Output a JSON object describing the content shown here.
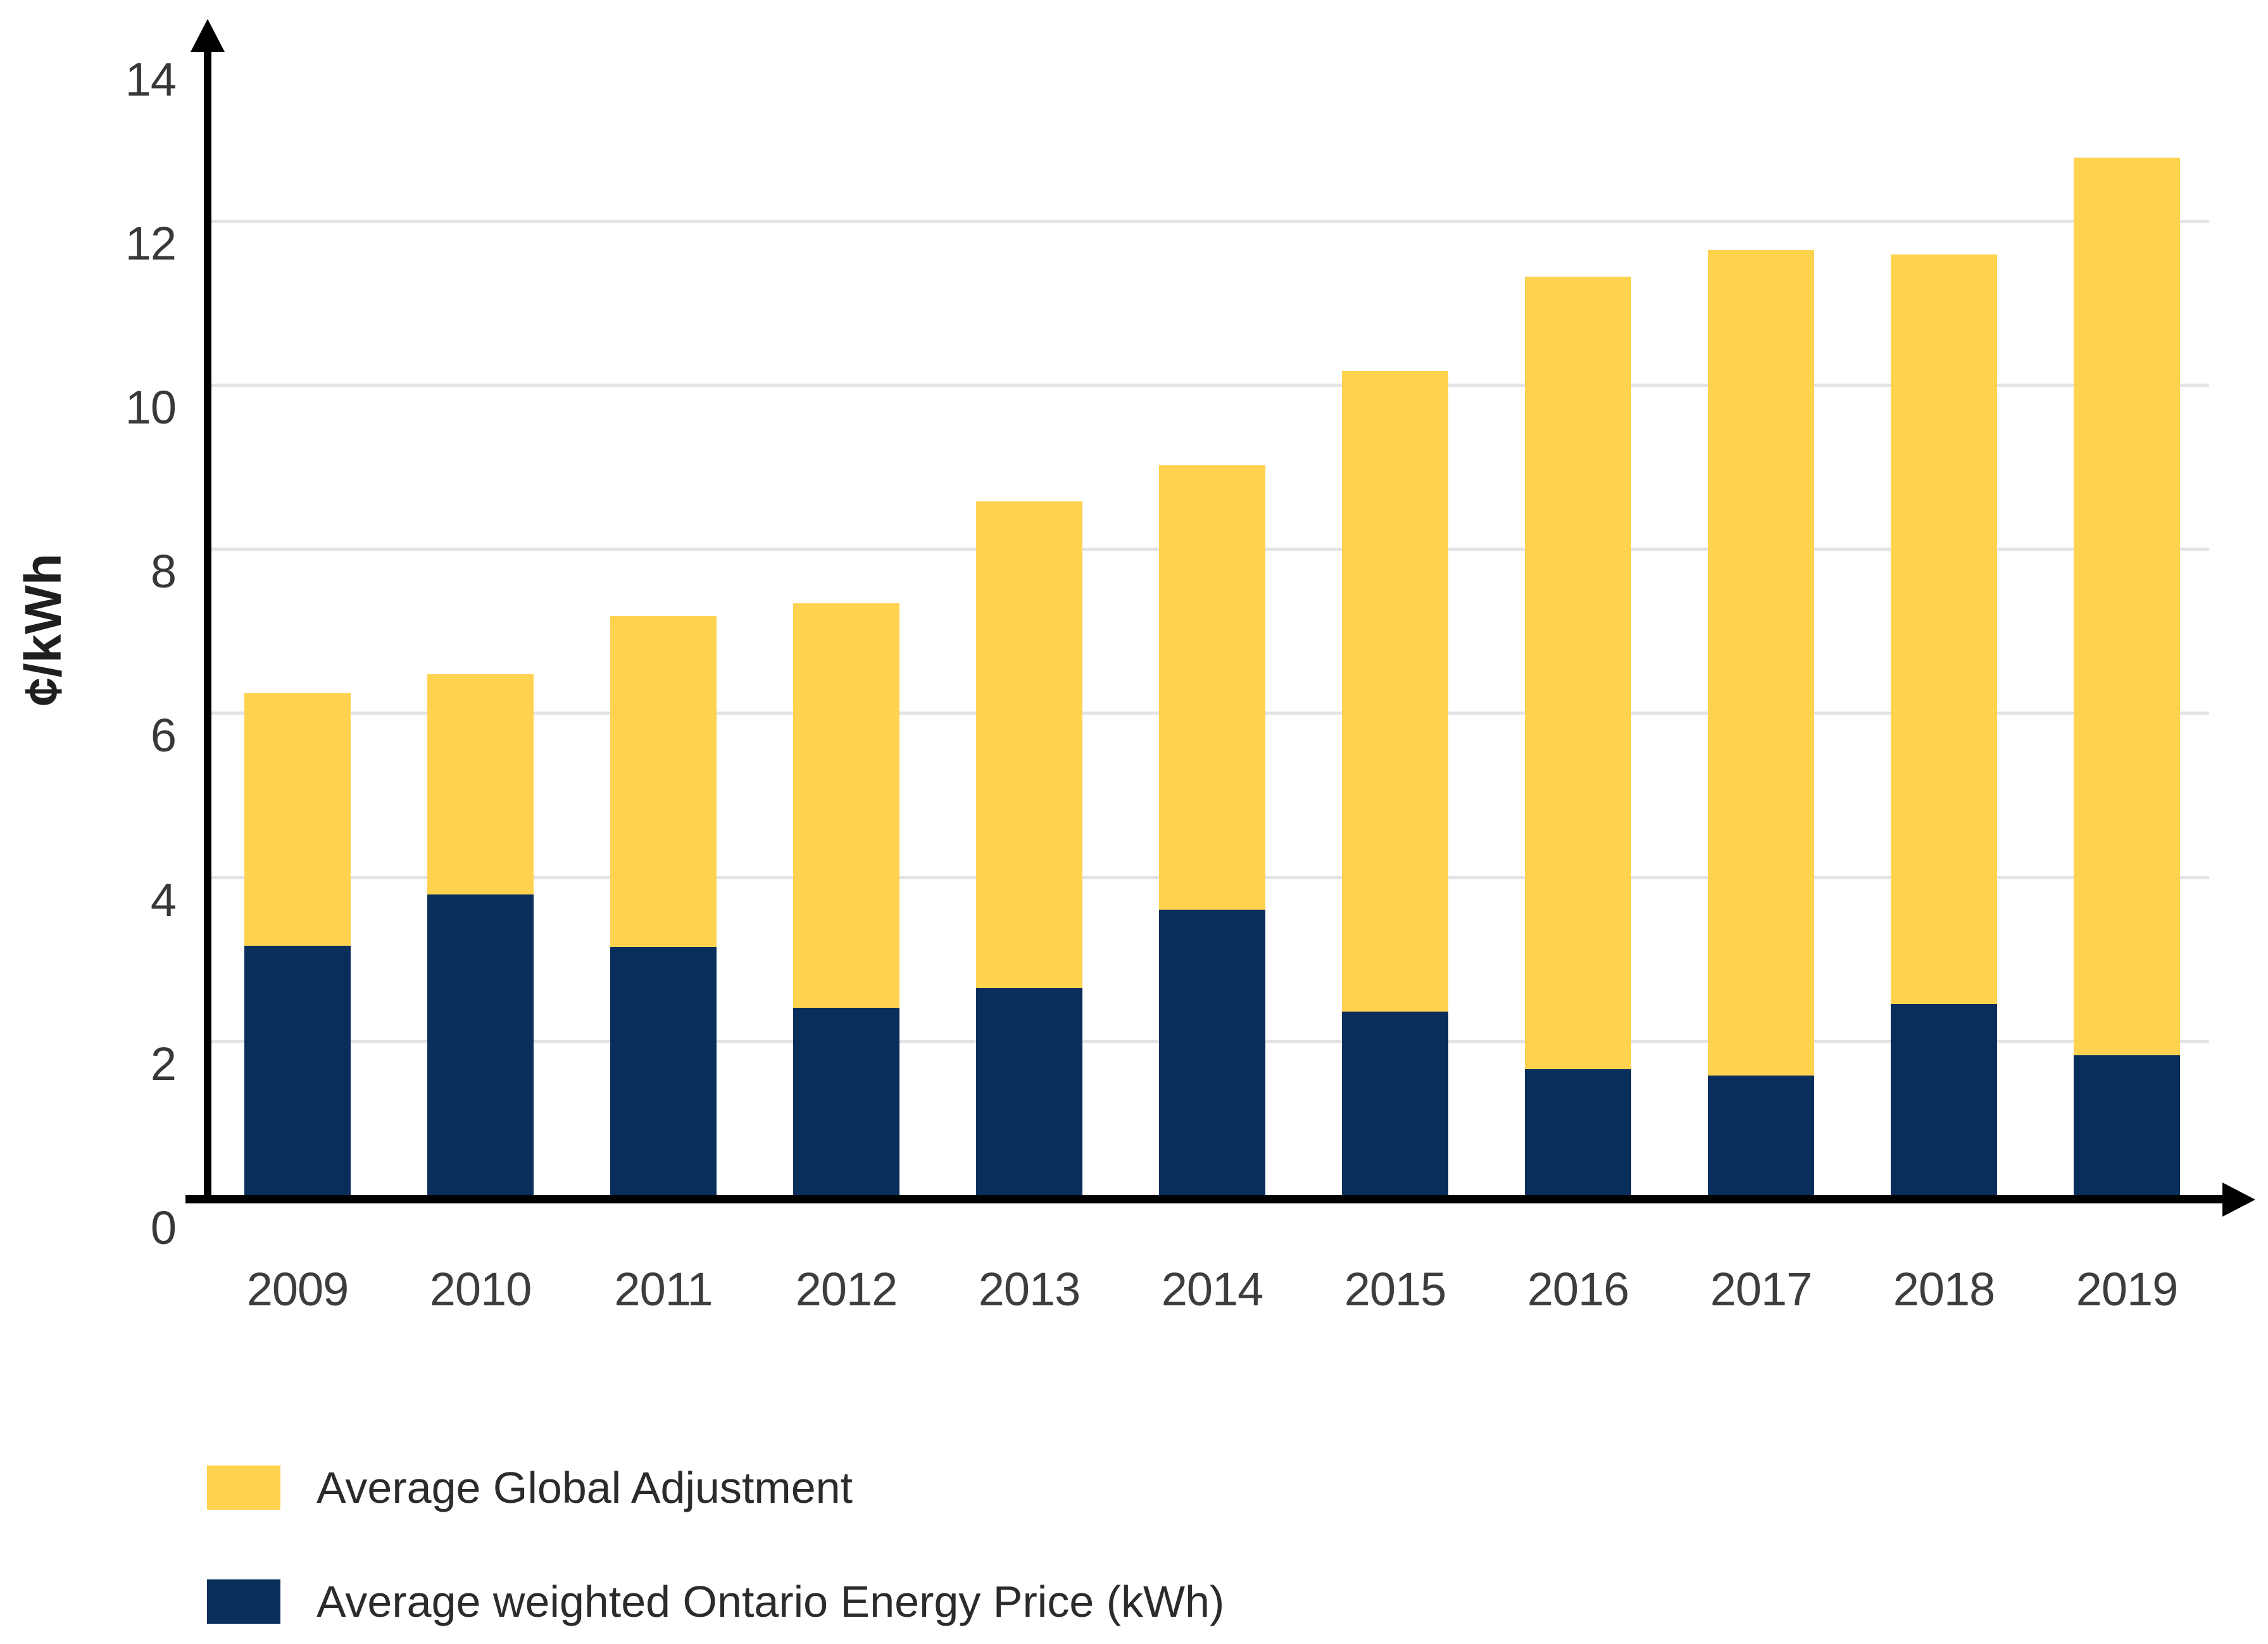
{
  "chart_data": {
    "type": "bar",
    "stacked": true,
    "title": "",
    "xlabel": "",
    "ylabel": "¢/kWh",
    "ylim": [
      0,
      14
    ],
    "y_ticks": [
      0,
      2,
      4,
      6,
      8,
      10,
      12,
      14
    ],
    "gridline_ticks": [
      2,
      4,
      6,
      8,
      10,
      12
    ],
    "grid": "horizontal",
    "legend_position": "bottom-left",
    "categories": [
      "2009",
      "2010",
      "2011",
      "2012",
      "2013",
      "2014",
      "2015",
      "2016",
      "2017",
      "2018",
      "2019"
    ],
    "series": [
      {
        "name": "Average weighted Ontario Energy Price (kWh)",
        "key": "ontario-energy-price",
        "color": "#0A2E5B",
        "values": [
          3.16,
          3.79,
          3.15,
          2.41,
          2.65,
          3.6,
          2.36,
          1.66,
          1.58,
          2.45,
          1.83
        ]
      },
      {
        "name": "Average Global Adjustment",
        "key": "global-adjustment",
        "color": "#FFD24F",
        "values": [
          3.08,
          2.68,
          4.03,
          4.93,
          5.93,
          5.42,
          7.81,
          9.66,
          10.06,
          9.14,
          10.94
        ]
      }
    ],
    "totals": [
      6.24,
      6.47,
      7.18,
      7.34,
      8.58,
      9.02,
      10.17,
      11.32,
      11.64,
      11.59,
      12.77
    ]
  },
  "axes": {
    "y_axis_label": "¢/kWh"
  },
  "legend": {
    "items": [
      {
        "label": "Average Global Adjustment",
        "color": "#FFD24F"
      },
      {
        "label": "Average weighted Ontario Energy Price (kWh)",
        "color": "#0A2E5B"
      }
    ]
  }
}
